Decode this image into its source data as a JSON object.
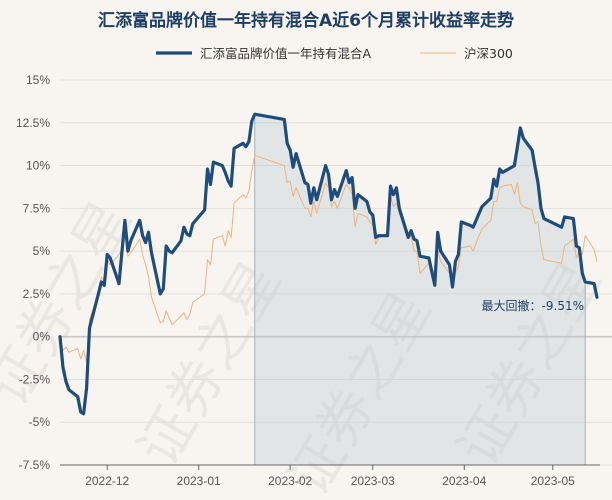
{
  "chart_data": {
    "type": "line",
    "title": "汇添富品牌价值一年持有混合A近6个月累计收益率走势",
    "y_unit": "%",
    "ylim": [
      -7.5,
      15
    ],
    "yticks": [
      -7.5,
      -5,
      -2.5,
      0,
      2.5,
      5,
      7.5,
      10,
      12.5,
      15
    ],
    "ytick_labels": [
      "-7.5%",
      "-5%",
      "-2.5%",
      "0%",
      "2.5%",
      "5%",
      "7.5%",
      "10%",
      "12.5%",
      "15%"
    ],
    "xlim": [
      "2022-11-15",
      "2023-05-17"
    ],
    "xticks": [
      "2022-12-01",
      "2023-01-01",
      "2023-02-01",
      "2023-03-01",
      "2023-04-01",
      "2023-05-01"
    ],
    "xtick_labels": [
      "2022-12",
      "2023-01",
      "2023-02",
      "2023-03",
      "2023-04",
      "2023-05"
    ],
    "grid": "horizontal",
    "legend_position": "top",
    "series": [
      {
        "name": "汇添富品牌价值一年持有混合A",
        "color": "#1e4d7d",
        "x": [
          "2022-11-15",
          "2022-11-16",
          "2022-11-17",
          "2022-11-18",
          "2022-11-21",
          "2022-11-22",
          "2022-11-23",
          "2022-11-24",
          "2022-11-25",
          "2022-11-28",
          "2022-11-29",
          "2022-11-30",
          "2022-12-01",
          "2022-12-02",
          "2022-12-05",
          "2022-12-06",
          "2022-12-07",
          "2022-12-08",
          "2022-12-09",
          "2022-12-12",
          "2022-12-13",
          "2022-12-14",
          "2022-12-15",
          "2022-12-16",
          "2022-12-19",
          "2022-12-20",
          "2022-12-21",
          "2022-12-22",
          "2022-12-23",
          "2022-12-26",
          "2022-12-27",
          "2022-12-28",
          "2022-12-29",
          "2022-12-30",
          "2023-01-03",
          "2023-01-04",
          "2023-01-05",
          "2023-01-06",
          "2023-01-09",
          "2023-01-10",
          "2023-01-11",
          "2023-01-12",
          "2023-01-13",
          "2023-01-16",
          "2023-01-17",
          "2023-01-18",
          "2023-01-19",
          "2023-01-20",
          "2023-01-30",
          "2023-01-31",
          "2023-02-01",
          "2023-02-02",
          "2023-02-03",
          "2023-02-06",
          "2023-02-07",
          "2023-02-08",
          "2023-02-09",
          "2023-02-10",
          "2023-02-13",
          "2023-02-14",
          "2023-02-15",
          "2023-02-16",
          "2023-02-17",
          "2023-02-20",
          "2023-02-21",
          "2023-02-22",
          "2023-02-23",
          "2023-02-24",
          "2023-02-27",
          "2023-02-28",
          "2023-03-01",
          "2023-03-02",
          "2023-03-03",
          "2023-03-06",
          "2023-03-07",
          "2023-03-08",
          "2023-03-09",
          "2023-03-10",
          "2023-03-13",
          "2023-03-14",
          "2023-03-15",
          "2023-03-16",
          "2023-03-17",
          "2023-03-20",
          "2023-03-21",
          "2023-03-22",
          "2023-03-23",
          "2023-03-24",
          "2023-03-27",
          "2023-03-28",
          "2023-03-29",
          "2023-03-30",
          "2023-03-31",
          "2023-04-03",
          "2023-04-04",
          "2023-04-06",
          "2023-04-07",
          "2023-04-10",
          "2023-04-11",
          "2023-04-12",
          "2023-04-13",
          "2023-04-14",
          "2023-04-17",
          "2023-04-18",
          "2023-04-19",
          "2023-04-20",
          "2023-04-21",
          "2023-04-24",
          "2023-04-25",
          "2023-04-26",
          "2023-04-27",
          "2023-04-28",
          "2023-05-04",
          "2023-05-05",
          "2023-05-08",
          "2023-05-09",
          "2023-05-10",
          "2023-05-11",
          "2023-05-12",
          "2023-05-15",
          "2023-05-16"
        ],
        "y": [
          0.0,
          -1.8,
          -2.6,
          -3.1,
          -3.5,
          -4.4,
          -4.5,
          -3.0,
          0.5,
          2.5,
          3.2,
          3.0,
          4.8,
          4.6,
          3.1,
          5.0,
          6.8,
          5.0,
          5.6,
          6.8,
          5.9,
          5.5,
          6.1,
          4.9,
          2.5,
          2.8,
          5.3,
          5.0,
          4.9,
          5.6,
          6.4,
          6.0,
          5.9,
          6.6,
          7.4,
          9.8,
          8.9,
          10.2,
          10.0,
          9.6,
          9.1,
          8.8,
          11.0,
          11.3,
          11.1,
          11.4,
          12.6,
          13.0,
          12.7,
          11.3,
          10.9,
          9.9,
          10.7,
          9.0,
          8.9,
          7.8,
          8.7,
          8.0,
          10.0,
          9.5,
          8.0,
          8.6,
          8.2,
          9.7,
          9.0,
          9.3,
          7.5,
          8.3,
          7.9,
          7.3,
          7.1,
          5.8,
          5.9,
          5.9,
          8.8,
          8.3,
          8.7,
          7.5,
          5.8,
          6.2,
          5.7,
          5.6,
          4.7,
          4.6,
          3.8,
          3.0,
          6.1,
          5.0,
          4.2,
          2.9,
          4.4,
          4.8,
          6.7,
          6.5,
          6.4,
          7.2,
          7.6,
          8.1,
          9.2,
          8.8,
          9.8,
          9.6,
          9.9,
          10.0,
          11.1,
          12.2,
          11.6,
          10.9,
          9.9,
          9.0,
          7.5,
          6.9,
          6.4,
          7.0,
          6.9,
          5.3,
          5.2,
          3.7,
          3.2,
          3.1,
          2.3
        ],
        "line_width": 3.2
      },
      {
        "name": "沪深300",
        "color": "#efb27c",
        "x": [
          "2022-11-15",
          "2022-11-16",
          "2022-11-17",
          "2022-11-18",
          "2022-11-21",
          "2022-11-22",
          "2022-11-23",
          "2022-11-24",
          "2022-11-25",
          "2022-11-28",
          "2022-11-29",
          "2022-11-30",
          "2022-12-01",
          "2022-12-02",
          "2022-12-05",
          "2022-12-06",
          "2022-12-07",
          "2022-12-08",
          "2022-12-09",
          "2022-12-12",
          "2022-12-13",
          "2022-12-14",
          "2022-12-15",
          "2022-12-16",
          "2022-12-19",
          "2022-12-20",
          "2022-12-21",
          "2022-12-22",
          "2022-12-23",
          "2022-12-26",
          "2022-12-27",
          "2022-12-28",
          "2022-12-29",
          "2022-12-30",
          "2023-01-03",
          "2023-01-04",
          "2023-01-05",
          "2023-01-06",
          "2023-01-09",
          "2023-01-10",
          "2023-01-11",
          "2023-01-12",
          "2023-01-13",
          "2023-01-16",
          "2023-01-17",
          "2023-01-18",
          "2023-01-19",
          "2023-01-20",
          "2023-01-30",
          "2023-01-31",
          "2023-02-01",
          "2023-02-02",
          "2023-02-03",
          "2023-02-06",
          "2023-02-07",
          "2023-02-08",
          "2023-02-09",
          "2023-02-10",
          "2023-02-13",
          "2023-02-14",
          "2023-02-15",
          "2023-02-16",
          "2023-02-17",
          "2023-02-20",
          "2023-02-21",
          "2023-02-22",
          "2023-02-23",
          "2023-02-24",
          "2023-02-27",
          "2023-02-28",
          "2023-03-01",
          "2023-03-02",
          "2023-03-03",
          "2023-03-06",
          "2023-03-07",
          "2023-03-08",
          "2023-03-09",
          "2023-03-10",
          "2023-03-13",
          "2023-03-14",
          "2023-03-15",
          "2023-03-16",
          "2023-03-17",
          "2023-03-20",
          "2023-03-21",
          "2023-03-22",
          "2023-03-23",
          "2023-03-24",
          "2023-03-27",
          "2023-03-28",
          "2023-03-29",
          "2023-03-30",
          "2023-03-31",
          "2023-04-03",
          "2023-04-04",
          "2023-04-06",
          "2023-04-07",
          "2023-04-10",
          "2023-04-11",
          "2023-04-12",
          "2023-04-13",
          "2023-04-14",
          "2023-04-17",
          "2023-04-18",
          "2023-04-19",
          "2023-04-20",
          "2023-04-21",
          "2023-04-24",
          "2023-04-25",
          "2023-04-26",
          "2023-04-27",
          "2023-04-28",
          "2023-05-04",
          "2023-05-05",
          "2023-05-08",
          "2023-05-09",
          "2023-05-10",
          "2023-05-11",
          "2023-05-12",
          "2023-05-15",
          "2023-05-16"
        ],
        "y": [
          0.0,
          -0.8,
          -0.6,
          -0.9,
          -0.7,
          -1.3,
          -0.8,
          -1.5,
          1.0,
          2.5,
          3.5,
          3.2,
          4.5,
          4.2,
          4.8,
          5.1,
          5.9,
          4.7,
          4.9,
          5.7,
          4.8,
          4.2,
          3.5,
          2.3,
          0.8,
          0.9,
          1.5,
          1.1,
          0.7,
          1.2,
          1.4,
          1.0,
          1.3,
          2.0,
          2.5,
          4.5,
          4.2,
          5.7,
          5.9,
          5.3,
          6.2,
          5.8,
          7.8,
          8.3,
          8.1,
          8.5,
          9.7,
          10.6,
          10.0,
          9.0,
          9.1,
          8.2,
          8.7,
          7.5,
          7.5,
          7.0,
          7.9,
          7.2,
          9.0,
          8.7,
          7.6,
          7.9,
          7.5,
          8.9,
          8.7,
          8.3,
          6.4,
          7.2,
          7.0,
          6.7,
          6.5,
          5.4,
          5.8,
          6.0,
          8.2,
          7.6,
          7.8,
          7.2,
          5.7,
          5.9,
          5.0,
          5.0,
          3.7,
          4.3,
          3.5,
          4.0,
          5.1,
          4.4,
          3.7,
          3.1,
          3.7,
          4.1,
          5.2,
          5.3,
          5.0,
          5.9,
          6.3,
          6.8,
          7.9,
          7.9,
          8.7,
          8.8,
          8.9,
          8.3,
          9.0,
          7.8,
          7.6,
          7.4,
          6.6,
          6.7,
          5.3,
          4.5,
          4.3,
          5.3,
          5.7,
          4.6,
          5.0,
          4.8,
          5.9,
          5.1,
          4.4
        ],
        "line_width": 1
      }
    ],
    "max_drawdown": {
      "label": "最大回撤：-9.51%",
      "start": "2023-01-20",
      "end": "2023-05-12",
      "shade_color": "#b9c8cf"
    }
  }
}
